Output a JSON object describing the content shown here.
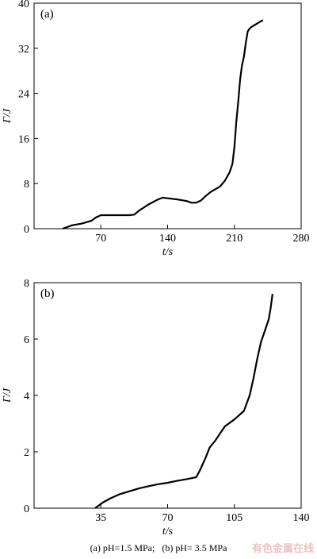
{
  "chart_data": [
    {
      "type": "line",
      "panel_label": "(a)",
      "xlabel": "t/s",
      "ylabel": "Γ/J",
      "xlim": [
        0,
        280
      ],
      "ylim": [
        0,
        40
      ],
      "xticks": [
        70,
        140,
        210,
        280
      ],
      "yticks": [
        0,
        8,
        16,
        24,
        32,
        40
      ],
      "tick_labels_x": [
        "70",
        "140",
        "210",
        "280"
      ],
      "tick_labels_y": [
        "0",
        "8",
        "16",
        "24",
        "32",
        "40"
      ],
      "grid": false,
      "series": [
        {
          "x": [
            30,
            40,
            50,
            60,
            65,
            70,
            75,
            80,
            90,
            100,
            105,
            110,
            120,
            130,
            135,
            140,
            150,
            160,
            165,
            170,
            175,
            180,
            185,
            190,
            195,
            200,
            205,
            208,
            210,
            212,
            214,
            216,
            218,
            220,
            222,
            224,
            226,
            228,
            232,
            236,
            240
          ],
          "y": [
            0,
            0.6,
            0.9,
            1.4,
            2.0,
            2.4,
            2.4,
            2.4,
            2.4,
            2.4,
            2.5,
            3.2,
            4.3,
            5.2,
            5.5,
            5.4,
            5.2,
            4.9,
            4.6,
            4.6,
            5.0,
            5.8,
            6.5,
            7.0,
            7.5,
            8.5,
            10.0,
            11.5,
            14.5,
            19.0,
            22.5,
            26.5,
            29.0,
            30.5,
            33.0,
            35.0,
            35.5,
            35.8,
            36.2,
            36.6,
            37.0
          ]
        }
      ]
    },
    {
      "type": "line",
      "panel_label": "(b)",
      "xlabel": "t/s",
      "ylabel": "Γ/J",
      "xlim": [
        0,
        140
      ],
      "ylim": [
        0,
        8
      ],
      "xticks": [
        35,
        70,
        105,
        140
      ],
      "yticks": [
        0,
        2,
        4,
        6,
        8
      ],
      "tick_labels_x": [
        "35",
        "70",
        "105",
        "140"
      ],
      "tick_labels_y": [
        "0",
        "2",
        "4",
        "6",
        "8"
      ],
      "grid": false,
      "series": [
        {
          "x": [
            32,
            36,
            40,
            45,
            50,
            55,
            60,
            65,
            70,
            75,
            80,
            85,
            87,
            90,
            92,
            95,
            98,
            100,
            105,
            110,
            113,
            115,
            117,
            119,
            121,
            123,
            124,
            125
          ],
          "y": [
            0,
            0.2,
            0.35,
            0.5,
            0.6,
            0.7,
            0.78,
            0.85,
            0.9,
            0.97,
            1.03,
            1.1,
            1.35,
            1.8,
            2.15,
            2.4,
            2.7,
            2.9,
            3.15,
            3.45,
            4.0,
            4.6,
            5.3,
            5.9,
            6.3,
            6.7,
            7.1,
            7.6
          ]
        }
      ]
    }
  ],
  "caption": {
    "part_a": "(a)   pH=1.5 MPa;",
    "part_b": "(b)   pH= 3.5 MPa"
  },
  "watermark": "有色金属在线"
}
